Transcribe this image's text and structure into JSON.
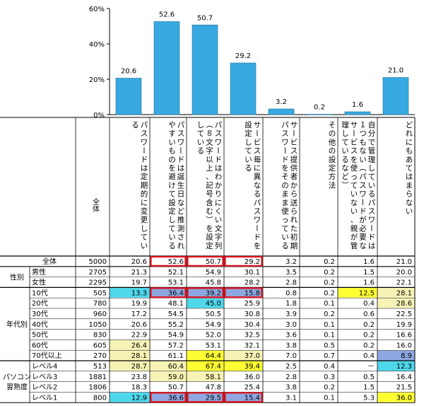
{
  "chart_data": {
    "type": "bar",
    "y_ticks": [
      "60%",
      "40%",
      "20%",
      "0%"
    ],
    "ylim": [
      0,
      60
    ],
    "grid": false,
    "color": "#37a9e0",
    "categories": [
      "パスワードは定期的に変更している",
      "パスワードは誕生日など推測されやすいものを避けて設定している",
      "パスワードはわかりにくい文字列（８文字以上、記号含む）を設定している",
      "サービス毎に異なるパスワードを設定している",
      "サービス提供者から送られた初期パスワードをそのまま使っている",
      "その他の設定方法",
      "自分で管理しているパスワードは１つもない（パスワードが必要なサービスを使っていない、親が管理しているなど）",
      "どれにもあてはまらない"
    ],
    "values": [
      20.6,
      52.6,
      50.7,
      29.2,
      3.2,
      0.2,
      1.6,
      21.0
    ],
    "value_labels": [
      "20.6",
      "52.6",
      "50.7",
      "29.2",
      "3.2",
      "0.2",
      "1.6",
      "21.0"
    ]
  },
  "table": {
    "total_header": "全体",
    "groups": [
      {
        "label": "",
        "rows": [
          0
        ]
      },
      {
        "label": "性別",
        "rows": [
          1,
          2
        ]
      },
      {
        "label": "年代別",
        "rows": [
          3,
          4,
          5,
          6,
          7,
          8,
          9
        ]
      },
      {
        "label": "パソコン\n習熟度",
        "rows": [
          10,
          11,
          12,
          13
        ]
      }
    ],
    "rows": [
      {
        "label": "全体",
        "n": "5000",
        "values": [
          "20.6",
          "52.6",
          "50.7",
          "29.2",
          "3.2",
          "0.2",
          "1.6",
          "21.0"
        ]
      },
      {
        "label": "男性",
        "n": "2705",
        "values": [
          "21.3",
          "52.1",
          "54.9",
          "30.1",
          "3.5",
          "0.2",
          "1.5",
          "20.0"
        ]
      },
      {
        "label": "女性",
        "n": "2295",
        "values": [
          "19.7",
          "53.1",
          "45.8",
          "28.2",
          "2.8",
          "0.2",
          "1.6",
          "22.1"
        ]
      },
      {
        "label": "10代",
        "n": "505",
        "values": [
          "13.3",
          "36.4",
          "39.2",
          "15.8",
          "0.8",
          "0.2",
          "12.5",
          "28.1"
        ]
      },
      {
        "label": "20代",
        "n": "780",
        "values": [
          "19.9",
          "48.1",
          "45.0",
          "25.9",
          "1.8",
          "0.1",
          "0.4",
          "28.6"
        ]
      },
      {
        "label": "30代",
        "n": "960",
        "values": [
          "17.2",
          "54.5",
          "50.5",
          "30.8",
          "3.9",
          "0.2",
          "0.6",
          "22.5"
        ]
      },
      {
        "label": "40代",
        "n": "1050",
        "values": [
          "20.6",
          "55.2",
          "54.9",
          "30.4",
          "3.0",
          "0.1",
          "0.2",
          "19.9"
        ]
      },
      {
        "label": "50代",
        "n": "830",
        "values": [
          "22.9",
          "54.9",
          "52.0",
          "32.5",
          "3.6",
          "0.1",
          "0.2",
          "16.6"
        ]
      },
      {
        "label": "60代",
        "n": "605",
        "values": [
          "26.4",
          "57.2",
          "53.1",
          "32.1",
          "3.8",
          "0.5",
          "0.2",
          "16.0"
        ]
      },
      {
        "label": "70代以上",
        "n": "270",
        "values": [
          "28.1",
          "61.1",
          "64.4",
          "37.0",
          "7.0",
          "0.7",
          "0.4",
          "8.9"
        ]
      },
      {
        "label": "レベル4",
        "n": "513",
        "values": [
          "28.7",
          "60.4",
          "67.4",
          "39.4",
          "2.5",
          "0.4",
          "－",
          "12.3"
        ]
      },
      {
        "label": "レベル3",
        "n": "1881",
        "values": [
          "23.8",
          "59.0",
          "58.1",
          "36.0",
          "2.8",
          "0.3",
          "0.5",
          "16.4"
        ]
      },
      {
        "label": "レベル2",
        "n": "1806",
        "values": [
          "18.3",
          "50.7",
          "47.8",
          "25.4",
          "3.8",
          "0.2",
          "1.5",
          "21.5"
        ]
      },
      {
        "label": "レベル1",
        "n": "800",
        "values": [
          "12.9",
          "36.6",
          "29.5",
          "15.4",
          "3.1",
          "0.1",
          "5.3",
          "36.0"
        ]
      }
    ],
    "cell_colors": {
      "3_0": "#4fd7ea",
      "3_1": "#8ea7e0",
      "3_2": "#8ea7e0",
      "3_3": "#8ea7e0",
      "3_6": "#ffff33",
      "3_7": "#f7f3b4",
      "4_2": "#4fd7ea",
      "4_7": "#f7f3b4",
      "8_0": "#f7f3b4",
      "9_0": "#f7f3b4",
      "9_2": "#ffff33",
      "9_3": "#f7f3b4",
      "9_7": "#8ea7e0",
      "10_0": "#f7f3b4",
      "10_1": "#f7f3b4",
      "10_2": "#ffff33",
      "10_3": "#ffff33",
      "10_7": "#4fd7ea",
      "11_1": "#f7f3b4",
      "11_2": "#f7f3b4",
      "13_0": "#4fd7ea",
      "13_1": "#8ea7e0",
      "13_2": "#8ea7e0",
      "13_3": "#8ea7e0",
      "13_7": "#ffff33"
    },
    "highlight_color": "#e0141e",
    "highlight_boxes": [
      {
        "row": 0,
        "cols": [
          1,
          2,
          3
        ]
      },
      {
        "row": 3,
        "cols": [
          1,
          2,
          3
        ]
      },
      {
        "row": 13,
        "cols": [
          1,
          2,
          3
        ]
      }
    ]
  }
}
